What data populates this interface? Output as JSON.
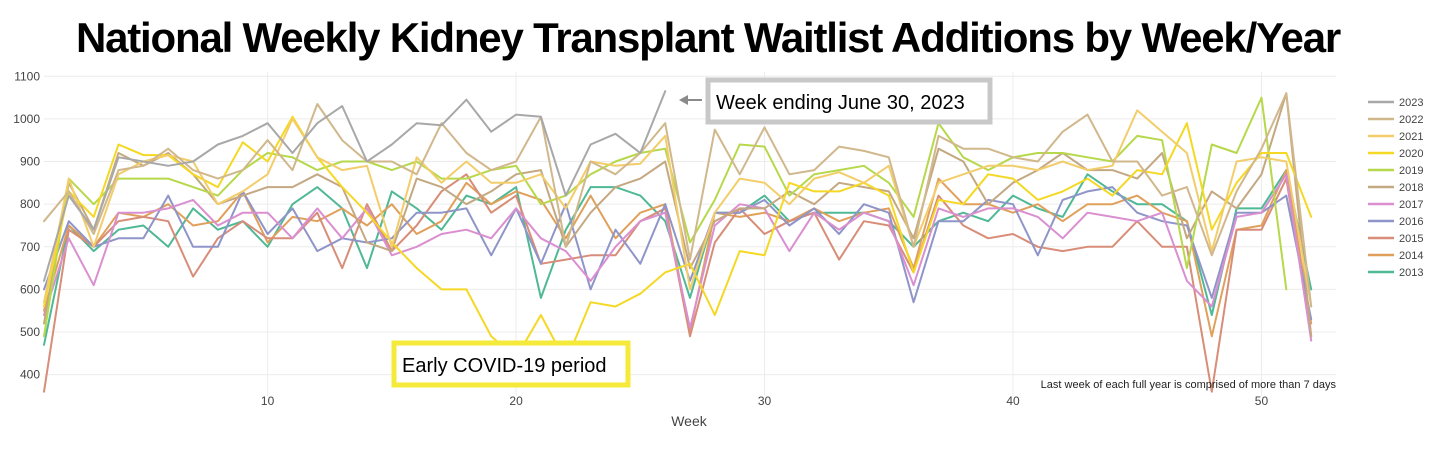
{
  "title": "National Weekly Kidney Transplant Waitlist Additions by Week/Year",
  "chart_data": {
    "type": "line",
    "xlabel": "Week",
    "ylabel": "",
    "xlim": [
      1,
      53
    ],
    "ylim": [
      350,
      1110
    ],
    "x_ticks": [
      10,
      20,
      30,
      40,
      50
    ],
    "y_ticks": [
      400,
      500,
      600,
      700,
      800,
      900,
      1000,
      1100
    ],
    "grid": true,
    "legend_position": "right",
    "note": "Last week of each full year is comprised of more than 7 days",
    "annotations": [
      {
        "text": "Week ending June 30, 2023",
        "style": "gray-box",
        "x": 26,
        "y": 1065
      },
      {
        "text": "Early COVID-19 period",
        "style": "yellow-box",
        "x": 18.5,
        "y": 440
      }
    ],
    "series": [
      {
        "name": "2023",
        "color": "#a8a8a8",
        "values": [
          620,
          820,
          740,
          910,
          900,
          890,
          900,
          940,
          960,
          990,
          920,
          990,
          1030,
          900,
          940,
          990,
          985,
          1045,
          970,
          1010,
          1005,
          820,
          940,
          965,
          920,
          1065
        ]
      },
      {
        "name": "2022",
        "color": "#d1b78c",
        "values": [
          760,
          830,
          730,
          880,
          890,
          930,
          880,
          860,
          880,
          950,
          880,
          1035,
          950,
          900,
          900,
          870,
          990,
          920,
          880,
          900,
          1005,
          700,
          900,
          870,
          920,
          990,
          670,
          975,
          870,
          980,
          870,
          880,
          935,
          925,
          910,
          700,
          960,
          930,
          930,
          910,
          900,
          970,
          1010,
          900,
          900,
          820,
          840,
          680,
          830,
          930,
          1060,
          560
        ]
      },
      {
        "name": "2021",
        "color": "#f2cd6a",
        "values": [
          570,
          860,
          700,
          870,
          900,
          915,
          900,
          800,
          830,
          870,
          1000,
          910,
          880,
          890,
          700,
          910,
          850,
          900,
          850,
          850,
          870,
          790,
          900,
          890,
          895,
          960,
          600,
          780,
          860,
          850,
          800,
          860,
          875,
          850,
          890,
          700,
          850,
          870,
          890,
          890,
          880,
          900,
          880,
          890,
          1020,
          970,
          920,
          690,
          900,
          910,
          900,
          560
        ]
      },
      {
        "name": "2020",
        "color": "#f5d824",
        "values": [
          560,
          830,
          770,
          940,
          915,
          915,
          870,
          840,
          945,
          900,
          1005,
          910,
          840,
          780,
          710,
          650,
          600,
          600,
          490,
          440,
          540,
          430,
          570,
          560,
          590,
          640,
          660,
          540,
          690,
          680,
          850,
          830,
          830,
          850,
          820,
          640,
          810,
          800,
          870,
          860,
          810,
          830,
          860,
          820,
          880,
          870,
          990,
          740,
          850,
          920,
          920,
          770
        ]
      },
      {
        "name": "2019",
        "color": "#b6d84a",
        "values": [
          490,
          860,
          800,
          860,
          860,
          860,
          840,
          820,
          880,
          920,
          910,
          880,
          900,
          900,
          880,
          900,
          860,
          860,
          880,
          890,
          800,
          820,
          870,
          900,
          920,
          930,
          710,
          810,
          940,
          935,
          820,
          870,
          880,
          890,
          850,
          770,
          990,
          910,
          880,
          910,
          920,
          920,
          910,
          900,
          960,
          950,
          650,
          940,
          920,
          1050,
          600
        ]
      },
      {
        "name": "2018",
        "color": "#c4a882",
        "values": [
          520,
          850,
          740,
          920,
          890,
          920,
          870,
          800,
          820,
          840,
          840,
          870,
          840,
          710,
          690,
          860,
          840,
          800,
          830,
          870,
          880,
          700,
          780,
          840,
          860,
          900,
          650,
          760,
          790,
          790,
          830,
          800,
          850,
          840,
          830,
          720,
          930,
          900,
          800,
          850,
          880,
          920,
          880,
          880,
          860,
          920,
          720,
          830,
          790,
          870,
          1060,
          490
        ]
      },
      {
        "name": "2017",
        "color": "#da8fd0",
        "values": [
          540,
          720,
          610,
          780,
          780,
          790,
          810,
          750,
          780,
          780,
          720,
          790,
          720,
          790,
          680,
          700,
          730,
          740,
          720,
          790,
          720,
          690,
          620,
          700,
          760,
          780,
          510,
          750,
          800,
          790,
          690,
          780,
          740,
          780,
          760,
          610,
          790,
          770,
          790,
          790,
          770,
          720,
          780,
          770,
          760,
          780,
          620,
          560,
          770,
          780,
          870,
          480
        ]
      },
      {
        "name": "2016",
        "color": "#8f95c8",
        "values": [
          600,
          760,
          700,
          720,
          720,
          820,
          700,
          700,
          830,
          730,
          790,
          690,
          720,
          710,
          720,
          780,
          780,
          790,
          680,
          790,
          660,
          800,
          600,
          740,
          660,
          800,
          620,
          780,
          780,
          810,
          750,
          790,
          730,
          800,
          780,
          570,
          760,
          760,
          810,
          800,
          680,
          810,
          830,
          840,
          780,
          760,
          750,
          580,
          780,
          780,
          820,
          530
        ]
      },
      {
        "name": "2015",
        "color": "#d88d78",
        "values": [
          360,
          740,
          700,
          760,
          770,
          760,
          630,
          720,
          760,
          720,
          720,
          780,
          650,
          800,
          690,
          750,
          830,
          870,
          780,
          820,
          660,
          670,
          680,
          680,
          760,
          790,
          490,
          710,
          790,
          730,
          760,
          780,
          670,
          760,
          750,
          640,
          820,
          750,
          720,
          730,
          700,
          690,
          700,
          700,
          760,
          700,
          700,
          360,
          740,
          740,
          860,
          490
        ]
      },
      {
        "name": "2014",
        "color": "#e0a05c",
        "values": [
          550,
          750,
          700,
          780,
          770,
          800,
          750,
          760,
          830,
          710,
          770,
          760,
          790,
          750,
          800,
          730,
          760,
          850,
          800,
          830,
          810,
          720,
          820,
          720,
          780,
          800,
          500,
          780,
          770,
          780,
          760,
          790,
          760,
          780,
          790,
          650,
          860,
          800,
          800,
          780,
          800,
          760,
          800,
          800,
          820,
          780,
          760,
          490,
          740,
          750,
          880,
          520
        ]
      },
      {
        "name": "2013",
        "color": "#4fb895",
        "values": [
          470,
          750,
          690,
          740,
          750,
          700,
          790,
          740,
          760,
          700,
          800,
          840,
          790,
          650,
          830,
          790,
          740,
          820,
          800,
          840,
          580,
          740,
          840,
          840,
          820,
          760,
          580,
          780,
          780,
          820,
          760,
          780,
          780,
          780,
          760,
          700,
          760,
          780,
          760,
          820,
          790,
          770,
          870,
          830,
          800,
          800,
          760,
          540,
          790,
          790,
          880,
          600
        ]
      }
    ]
  }
}
